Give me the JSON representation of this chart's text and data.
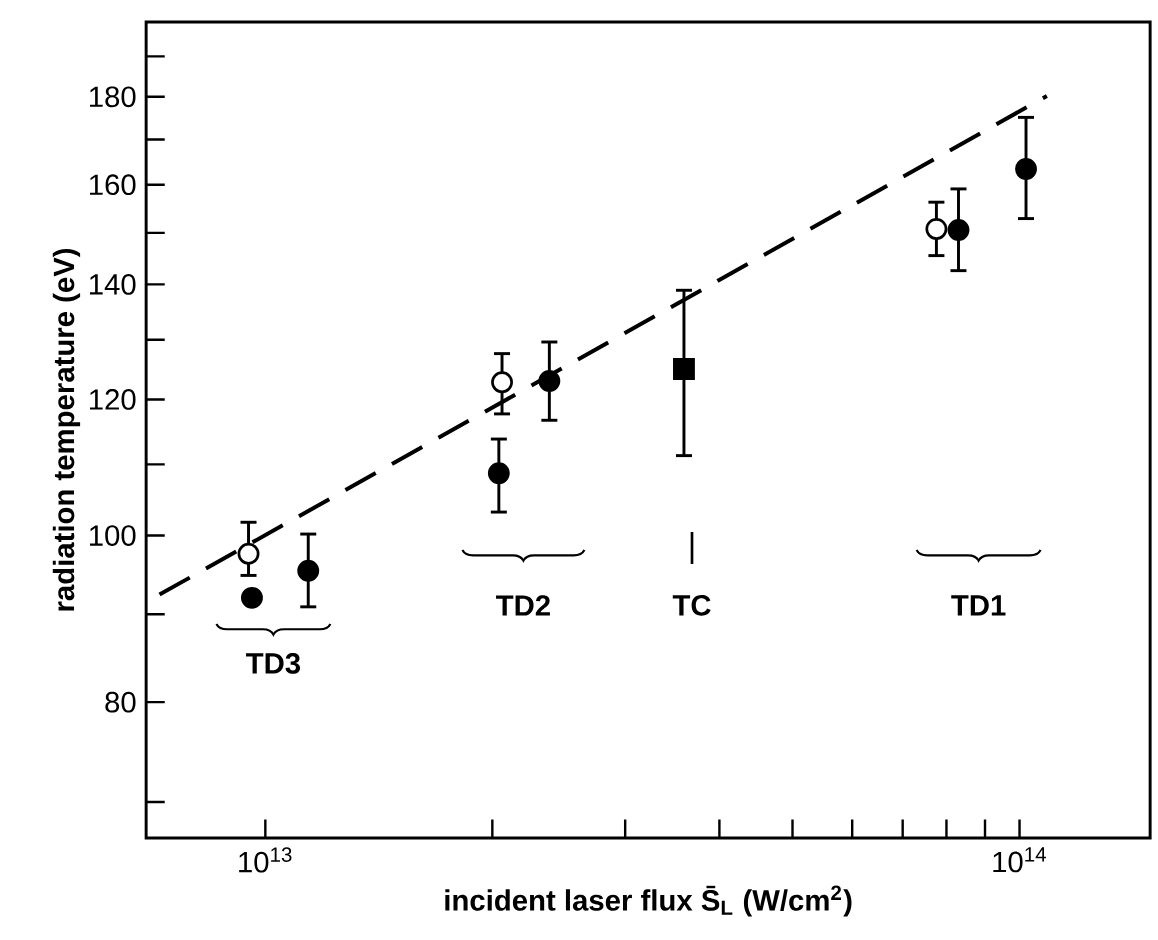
{
  "chart_data": {
    "type": "scatter",
    "xlabel": "incident laser flux S̄$_{L}$ (W/cm$^{2}$)",
    "ylabel": "radiation temperature (eV)",
    "log": "xy",
    "xlim": [
      6950000000000.0,
      149000000000000.0
    ],
    "ylim": [
      66.7,
      199
    ],
    "xticks": [
      {
        "value": 10000000000000.0,
        "label": "10$^{13}$"
      },
      {
        "value": 20000000000000.0,
        "label": null
      },
      {
        "value": 30000000000000.0,
        "label": null
      },
      {
        "value": 40000000000000.0,
        "label": null
      },
      {
        "value": 50000000000000.0,
        "label": null
      },
      {
        "value": 60000000000000.0,
        "label": null
      },
      {
        "value": 70000000000000.0,
        "label": null
      },
      {
        "value": 80000000000000.0,
        "label": null
      },
      {
        "value": 90000000000000.0,
        "label": null
      },
      {
        "value": 100000000000000.0,
        "label": "10$^{14}$"
      }
    ],
    "yticks": [
      {
        "value": 70,
        "label": null
      },
      80,
      {
        "value": 90,
        "label": null
      },
      100,
      {
        "value": 110,
        "label": null
      },
      120,
      {
        "value": 130,
        "label": null
      },
      140,
      {
        "value": 150,
        "label": null
      },
      160,
      {
        "value": 170,
        "label": null
      },
      180,
      {
        "value": 190,
        "label": null
      }
    ],
    "series": [
      {
        "marker": "circle",
        "color": "#ffffff",
        "x": [
          9500000000000.0,
          20600000000000.0,
          77600000000000.0
        ],
        "values": [
          97.6,
          122.8,
          150.8
        ],
        "errors": [
          [
            94.8,
            101.8
          ],
          [
            117.7,
            127.6
          ],
          [
            145.5,
            156.3
          ]
        ]
      },
      {
        "marker": "circle",
        "color": "#000000",
        "x": [
          9600000000000.0,
          11400000000000.0,
          20400000000000.0,
          23800000000000.0,
          83000000000000.0,
          102000000000000.0
        ],
        "values": [
          92.0,
          95.4,
          108.7,
          123.0,
          150.6,
          163.4
        ],
        "errors": [
          null,
          [
            90.9,
            100.2
          ],
          [
            103.2,
            113.8
          ],
          [
            116.7,
            129.6
          ],
          [
            142.6,
            159.1
          ],
          [
            152.9,
            175.1
          ]
        ]
      },
      {
        "marker": "square",
        "color": "#000000",
        "x": [
          35900000000000.0
        ],
        "values": [
          125.0
        ],
        "errors": [
          [
            111.3,
            138.9
          ]
        ]
      },
      {
        "type": "line",
        "line_style": "dashed",
        "marker": "none",
        "color": "#000000",
        "x": [
          7240000000000.0,
          108700000000000.0
        ],
        "values": [
          92.4,
          180.2
        ]
      }
    ],
    "annotations": [
      "TD3",
      "TD2",
      "TC",
      "TD1"
    ]
  }
}
